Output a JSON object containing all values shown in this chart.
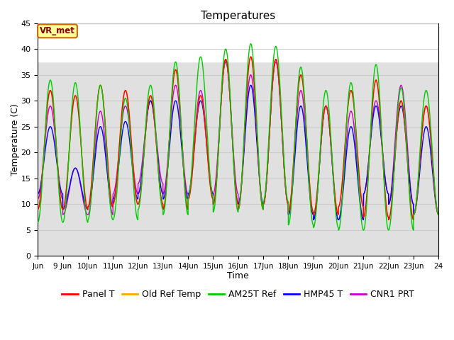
{
  "title": "Temperatures",
  "xlabel": "Time",
  "ylabel": "Temperature (C)",
  "ylim": [
    0,
    45
  ],
  "yticks": [
    0,
    5,
    10,
    15,
    20,
    25,
    30,
    35,
    40,
    45
  ],
  "xlim_start": 8.0,
  "xlim_end": 24.0,
  "xtick_positions": [
    8,
    9,
    10,
    11,
    12,
    13,
    14,
    15,
    16,
    17,
    18,
    19,
    20,
    21,
    22,
    23,
    24
  ],
  "xtick_labels": [
    "Jun",
    "9 Jun",
    "10Jun",
    "11Jun",
    "12Jun",
    "13Jun",
    "14Jun",
    "15Jun",
    "16Jun",
    "17Jun",
    "18Jun",
    "19Jun",
    "20Jun",
    "21Jun",
    "22Jun",
    "23Jun",
    "24"
  ],
  "colors": {
    "Panel T": "#ff0000",
    "Old Ref Temp": "#ffaa00",
    "AM25T Ref": "#00cc00",
    "HMP45 T": "#0000ff",
    "CNR1 PRT": "#cc00cc"
  },
  "annotation_text": "VR_met",
  "annotation_bg": "#ffff99",
  "annotation_border": "#cc6600",
  "grid_color": "#cccccc",
  "bg_color": "#e0e0e0",
  "white_band": [
    37.5,
    45
  ],
  "linewidth": 1.0,
  "legend_fontsize": 9,
  "title_fontsize": 11,
  "figsize": [
    6.4,
    4.8
  ],
  "dpi": 100,
  "day_highs_panel": [
    32,
    31,
    33,
    32,
    31,
    36,
    31,
    38,
    38.5,
    38,
    35,
    29,
    32,
    34,
    30,
    29
  ],
  "day_highs_am25t": [
    34,
    33.5,
    33,
    30.5,
    33,
    37.5,
    38.5,
    40,
    41,
    40.5,
    36.5,
    32,
    33.5,
    37,
    32.5,
    32
  ],
  "day_lows_panel": [
    9,
    9,
    9.5,
    10,
    10,
    9,
    11,
    10,
    9,
    10,
    8.5,
    8,
    9.5,
    7.5,
    7,
    8
  ],
  "day_lows_am25t": [
    6.5,
    6.5,
    7,
    7,
    9,
    8,
    11.5,
    8.5,
    9,
    10.5,
    6,
    5.5,
    5,
    5,
    5,
    8
  ],
  "day_highs_hmp45": [
    25,
    17,
    25,
    26,
    30,
    30,
    30,
    38,
    33,
    38,
    29,
    29,
    25,
    29,
    29,
    25
  ],
  "day_lows_hmp45": [
    12,
    9,
    9.5,
    11,
    12,
    11,
    12,
    10,
    10,
    10,
    8,
    7,
    7,
    12,
    10,
    8
  ],
  "day_highs_cnr1": [
    29,
    17,
    28,
    29,
    30,
    33,
    32,
    37.5,
    35,
    37.5,
    32,
    29,
    28,
    30,
    33,
    29
  ],
  "day_lows_cnr1": [
    11,
    8,
    8,
    12,
    14,
    12,
    12,
    12,
    10,
    10,
    8,
    7,
    7,
    12,
    10,
    8
  ],
  "pts_per_day": 480
}
